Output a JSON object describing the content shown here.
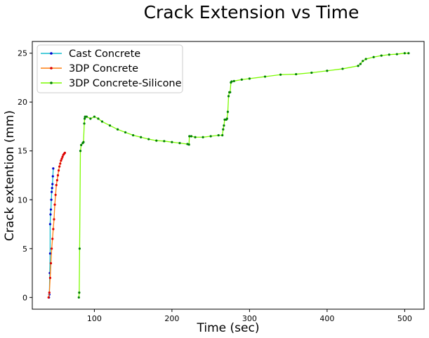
{
  "chart_data": {
    "type": "line",
    "title": "Crack Extension vs Time",
    "xlabel": "Time (sec)",
    "ylabel": "Crack extention (mm)",
    "xlim": [
      20,
      525
    ],
    "ylim": [
      -1.2,
      26.2
    ],
    "xticks": [
      100,
      200,
      300,
      400,
      500
    ],
    "yticks": [
      0,
      5,
      10,
      15,
      20,
      25
    ],
    "grid": false,
    "legend_position": "top-left",
    "series": [
      {
        "name": "Cast Concrete",
        "line_color": "#17becf",
        "marker_color": "#0000cc",
        "x": [
          41.5,
          42,
          42.5,
          43,
          43,
          43.5,
          44,
          44.5,
          45,
          45.5,
          46,
          46.5,
          47
        ],
        "y": [
          0,
          0.3,
          2.5,
          4.5,
          7.5,
          8.5,
          9.0,
          10.0,
          10.8,
          11.2,
          11.6,
          12.4,
          13.2
        ]
      },
      {
        "name": "3DP Concrete",
        "line_color": "#ff7f0e",
        "marker_color": "#dd0000",
        "x": [
          41,
          42,
          43,
          44,
          45,
          46,
          47,
          48,
          49,
          50,
          51,
          52,
          53,
          54,
          55,
          56,
          57,
          58,
          59,
          60,
          61,
          62
        ],
        "y": [
          0,
          0.5,
          2,
          3.5,
          5,
          6,
          7,
          8,
          9.5,
          10.5,
          11.5,
          12,
          12.5,
          13,
          13.4,
          13.7,
          14,
          14.2,
          14.4,
          14.6,
          14.7,
          14.8
        ]
      },
      {
        "name": "3DP Concrete-Silicone",
        "line_color": "#7cfc00",
        "marker_color": "#008000",
        "x": [
          80,
          80.5,
          81,
          82,
          83,
          85,
          86,
          87,
          87.5,
          88,
          90,
          95,
          100,
          105,
          110,
          120,
          130,
          140,
          150,
          160,
          170,
          180,
          190,
          200,
          210,
          220,
          222,
          222.5,
          225,
          230,
          240,
          250,
          260,
          265,
          266,
          267,
          268,
          270,
          271,
          272,
          273,
          274,
          275,
          276,
          277,
          280,
          290,
          300,
          320,
          340,
          360,
          380,
          400,
          420,
          440,
          443,
          446,
          450,
          460,
          470,
          480,
          490,
          500,
          505
        ],
        "y": [
          0,
          0.5,
          5,
          15,
          15.6,
          15.8,
          15.9,
          17.8,
          18.3,
          18.5,
          18.5,
          18.3,
          18.5,
          18.3,
          18,
          17.6,
          17.2,
          16.9,
          16.6,
          16.4,
          16.2,
          16.05,
          16,
          15.9,
          15.8,
          15.7,
          15.65,
          16.5,
          16.5,
          16.4,
          16.4,
          16.5,
          16.6,
          16.6,
          17.2,
          17.6,
          18.2,
          18.2,
          18.3,
          19,
          20.6,
          21,
          21,
          22,
          22.1,
          22.15,
          22.3,
          22.4,
          22.6,
          22.8,
          22.85,
          23.0,
          23.2,
          23.4,
          23.7,
          23.9,
          24.2,
          24.4,
          24.6,
          24.75,
          24.85,
          24.9,
          25.0,
          25.0
        ]
      }
    ]
  }
}
